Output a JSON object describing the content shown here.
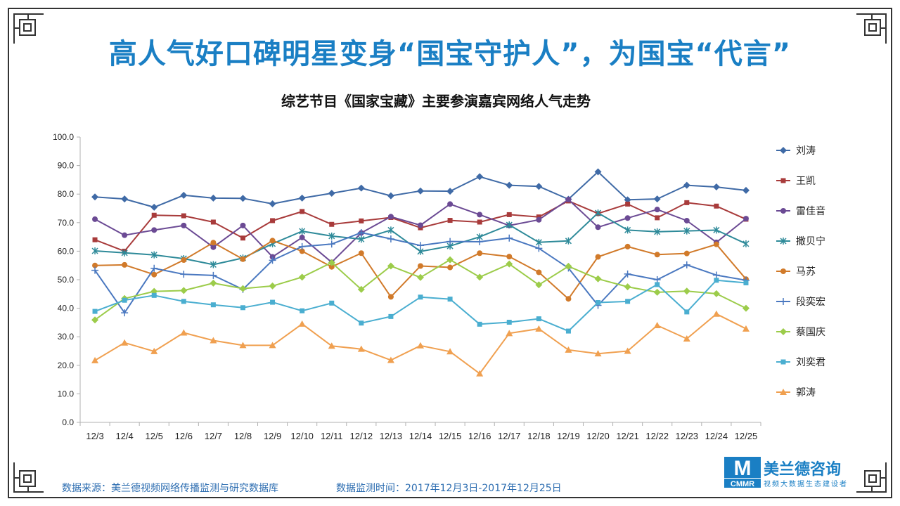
{
  "headline": "高人气好口碑明星变身“国宝守护人”，为国宝“代言”",
  "footer": {
    "source": "数据来源：美兰德视频网络传播监测与研究数据库",
    "period": "数据监测时间：2017年12月3日-2017年12月25日"
  },
  "logo": {
    "mark": "M",
    "mark_sub": "CMMR",
    "name": "美兰德咨询",
    "tagline": "视频大数据生态建设者"
  },
  "chart_data": {
    "type": "line",
    "title": "综艺节目《国家宝藏》主要参演嘉宾网络人气走势",
    "xlabel": "",
    "ylabel": "",
    "ylim": [
      0,
      100
    ],
    "y_ticks": [
      "0.0",
      "10.0",
      "20.0",
      "30.0",
      "40.0",
      "50.0",
      "60.0",
      "70.0",
      "80.0",
      "90.0",
      "100.0"
    ],
    "grid": false,
    "legend_position": "right",
    "categories": [
      "12/3",
      "12/4",
      "12/5",
      "12/6",
      "12/7",
      "12/8",
      "12/9",
      "12/10",
      "12/11",
      "12/12",
      "12/13",
      "12/14",
      "12/15",
      "12/16",
      "12/17",
      "12/18",
      "12/19",
      "12/20",
      "12/21",
      "12/22",
      "12/23",
      "12/24",
      "12/25"
    ],
    "series": [
      {
        "name": "刘涛",
        "color": "#3f6aa6",
        "marker": "diamond",
        "values": [
          79.0,
          78.3,
          75.4,
          79.6,
          78.6,
          78.5,
          76.6,
          78.6,
          80.3,
          82.1,
          79.4,
          81.1,
          81.0,
          86.1,
          83.1,
          82.7,
          78.2,
          87.8,
          78.0,
          78.3,
          83.1,
          82.5,
          81.3
        ]
      },
      {
        "name": "王凯",
        "color": "#a83b3b",
        "marker": "square",
        "values": [
          64.0,
          60.0,
          72.6,
          72.4,
          70.2,
          64.6,
          70.7,
          73.9,
          69.4,
          70.6,
          71.8,
          68.2,
          70.8,
          70.2,
          72.8,
          72.0,
          77.6,
          73.2,
          76.5,
          71.7,
          77.0,
          75.8,
          71.2
        ]
      },
      {
        "name": "雷佳音",
        "color": "#6b4a94",
        "marker": "circle",
        "values": [
          71.2,
          65.6,
          67.4,
          69.0,
          61.4,
          69.0,
          58.0,
          64.8,
          56.1,
          66.4,
          72.1,
          69.1,
          76.5,
          72.8,
          69.0,
          71.0,
          78.1,
          68.4,
          71.6,
          74.6,
          70.7,
          63.1,
          71.4
        ]
      },
      {
        "name": "撒贝宁",
        "color": "#2e8a99",
        "marker": "star",
        "values": [
          60.1,
          59.4,
          58.7,
          57.4,
          55.3,
          57.6,
          62.6,
          67.0,
          65.3,
          64.2,
          67.4,
          59.9,
          61.8,
          65.0,
          69.2,
          63.1,
          63.6,
          73.4,
          67.4,
          66.8,
          67.1,
          67.4,
          62.6
        ]
      },
      {
        "name": "马苏",
        "color": "#d17a2a",
        "marker": "circle",
        "values": [
          55.0,
          55.2,
          51.8,
          56.9,
          63.0,
          57.2,
          63.7,
          60.0,
          54.5,
          59.3,
          44.0,
          54.8,
          54.3,
          59.3,
          58.1,
          52.6,
          43.3,
          58.0,
          61.6,
          58.8,
          59.2,
          62.4,
          50.2
        ]
      },
      {
        "name": "段奕宏",
        "color": "#4a78c0",
        "marker": "plus",
        "values": [
          53.3,
          38.4,
          54.0,
          51.9,
          51.5,
          46.6,
          56.8,
          61.6,
          62.5,
          66.5,
          64.3,
          62.0,
          63.4,
          63.3,
          64.6,
          61.0,
          54.1,
          41.0,
          52.0,
          50.0,
          55.2,
          51.6,
          49.8
        ]
      },
      {
        "name": "蔡国庆",
        "color": "#9ccc4a",
        "marker": "diamond",
        "values": [
          35.9,
          43.4,
          45.9,
          46.2,
          48.8,
          46.9,
          47.8,
          50.9,
          56.0,
          46.6,
          54.8,
          50.8,
          57.0,
          50.9,
          55.5,
          48.2,
          54.7,
          50.3,
          47.5,
          45.6,
          46.0,
          45.1,
          40.0
        ]
      },
      {
        "name": "刘奕君",
        "color": "#4aaed0",
        "marker": "square",
        "values": [
          38.9,
          42.8,
          44.5,
          42.4,
          41.2,
          40.2,
          42.1,
          39.1,
          41.8,
          34.8,
          37.1,
          43.9,
          43.2,
          34.4,
          35.1,
          36.3,
          32.0,
          42.0,
          42.4,
          48.3,
          38.7,
          49.8,
          48.9
        ]
      },
      {
        "name": "郭涛",
        "color": "#f0a050",
        "marker": "triangle",
        "values": [
          21.7,
          27.9,
          24.9,
          31.4,
          28.7,
          27.0,
          27.0,
          34.5,
          26.8,
          25.7,
          21.8,
          26.9,
          24.8,
          17.1,
          31.2,
          32.8,
          25.4,
          24.1,
          25.0,
          34.0,
          29.3,
          38.0,
          32.8
        ]
      }
    ]
  }
}
